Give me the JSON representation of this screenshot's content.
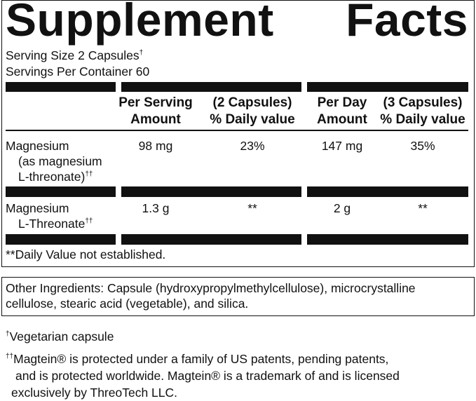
{
  "header": {
    "title": "Supplement Facts",
    "serving_size": {
      "text": "Serving Size 2 Capsules",
      "mark": "†"
    },
    "servings_per_container": "Servings Per Container 60"
  },
  "table": {
    "columns": [
      [
        "Per Serving",
        "Amount"
      ],
      [
        "(2 Capsules)",
        "% Daily value"
      ],
      [
        "Per Day",
        "Amount"
      ],
      [
        "(3 Capsules)",
        "% Daily value"
      ]
    ],
    "rows": [
      {
        "name": [
          "Magnesium",
          "(as magnesium",
          "L-threonate)"
        ],
        "mark": "††",
        "cells": [
          "98 mg",
          "23%",
          "147 mg",
          "35%"
        ]
      },
      {
        "name": [
          "Magnesium",
          "L-Threonate"
        ],
        "mark": "††",
        "cells": [
          "1.3 g",
          "**",
          "2 g",
          "**"
        ]
      }
    ],
    "footnote": "**Daily Value not established."
  },
  "other_ingredients": [
    "Other Ingredients: Capsule (hydroxypropylmethylcellulose), microcrystalline",
    "cellulose, stearic acid (vegetable), and silica."
  ],
  "notes": [
    {
      "mark": "†",
      "lines": [
        "Vegetarian capsule"
      ]
    },
    {
      "mark": "††",
      "lines": [
        "Magtein® is protected under a family of US patents, pending patents,",
        "and is protected worldwide. Magtein® is a trademark of and is licensed",
        "exclusively by ThreoTech LLC."
      ]
    }
  ]
}
